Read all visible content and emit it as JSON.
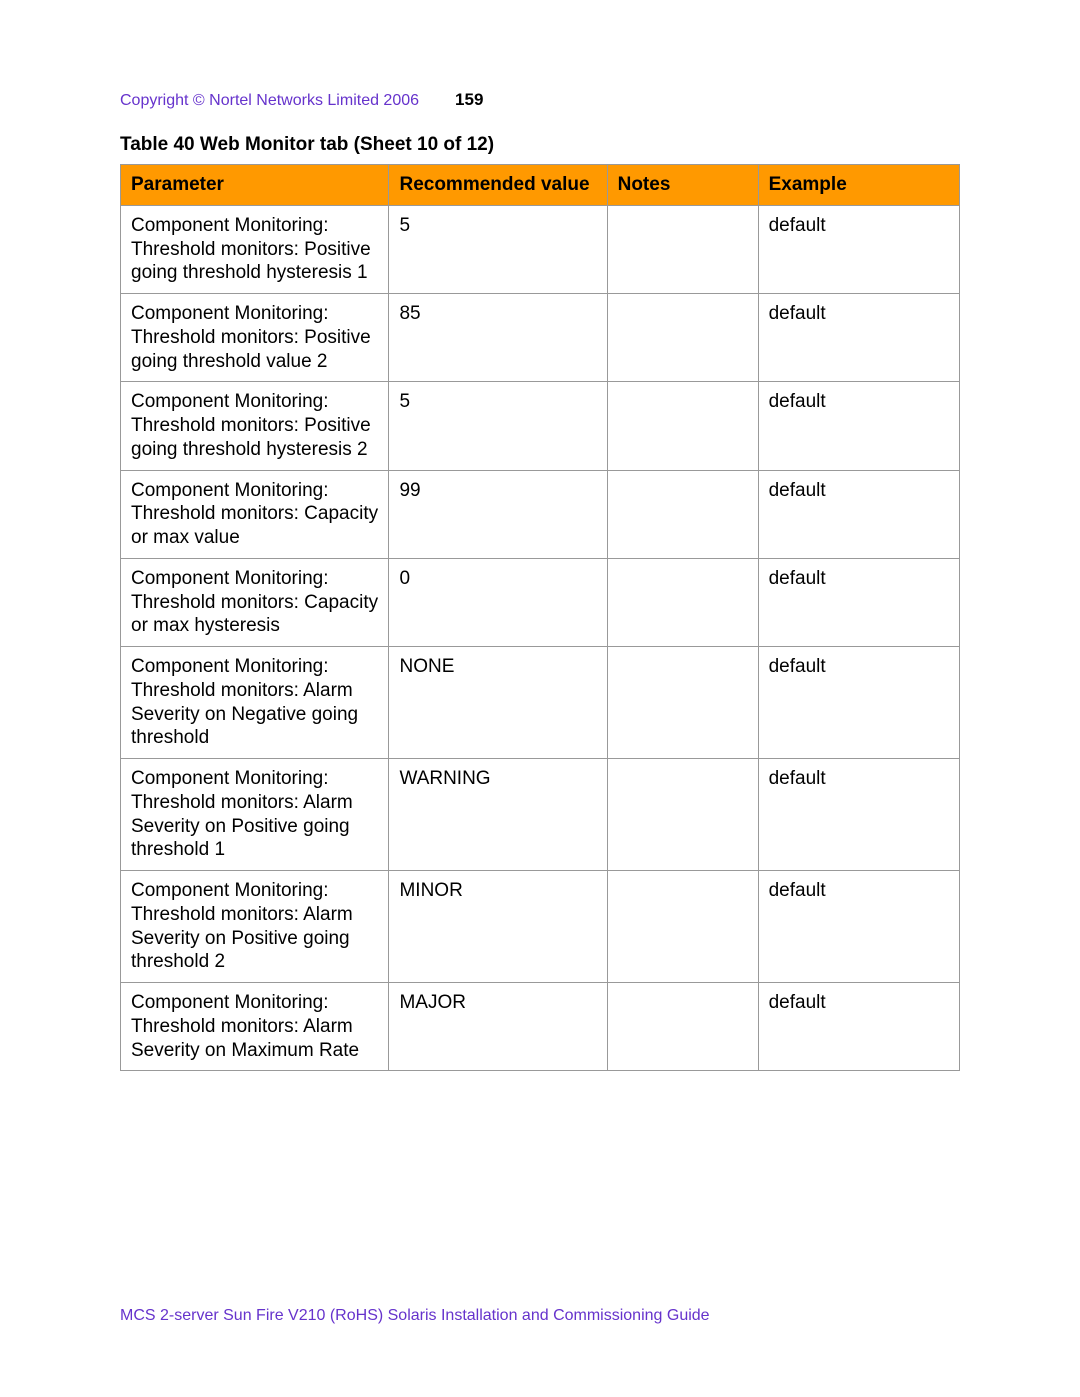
{
  "header": {
    "copyright": "Copyright © Nortel Networks Limited 2006",
    "page_number": "159"
  },
  "table": {
    "title": "Table 40  Web Monitor tab (Sheet 10 of 12)",
    "header_bg": "#ff9900",
    "border_color": "#999999",
    "columns": [
      "Parameter",
      "Recommended value",
      "Notes",
      "Example"
    ],
    "rows": [
      {
        "parameter": "Component Monitoring: Threshold monitors: Positive going threshold hysteresis 1",
        "recommended": "5",
        "notes": "",
        "example": "default"
      },
      {
        "parameter": "Component Monitoring: Threshold monitors: Positive going threshold value 2",
        "recommended": "85",
        "notes": "",
        "example": "default"
      },
      {
        "parameter": "Component Monitoring: Threshold monitors: Positive going threshold hysteresis 2",
        "recommended": "5",
        "notes": "",
        "example": "default"
      },
      {
        "parameter": "Component Monitoring: Threshold monitors: Capacity or max value",
        "recommended": "99",
        "notes": "",
        "example": "default"
      },
      {
        "parameter": "Component Monitoring: Threshold monitors: Capacity or max hysteresis",
        "recommended": "0",
        "notes": "",
        "example": "default"
      },
      {
        "parameter": "Component Monitoring: Threshold monitors: Alarm Severity on Negative going threshold",
        "recommended": "NONE",
        "notes": "",
        "example": "default"
      },
      {
        "parameter": "Component Monitoring: Threshold monitors: Alarm Severity on Positive going threshold 1",
        "recommended": "WARNING",
        "notes": "",
        "example": "default"
      },
      {
        "parameter": "Component Monitoring: Threshold monitors: Alarm Severity on Positive going threshold 2",
        "recommended": "MINOR",
        "notes": "",
        "example": "default"
      },
      {
        "parameter": "Component Monitoring: Threshold monitors: Alarm Severity on Maximum Rate",
        "recommended": "MAJOR",
        "notes": "",
        "example": "default"
      }
    ]
  },
  "footer": {
    "text": "MCS 2-server Sun Fire V210 (RoHS) Solaris Installation and Commissioning Guide"
  },
  "colors": {
    "link_purple": "#6633cc",
    "header_orange": "#ff9900"
  }
}
